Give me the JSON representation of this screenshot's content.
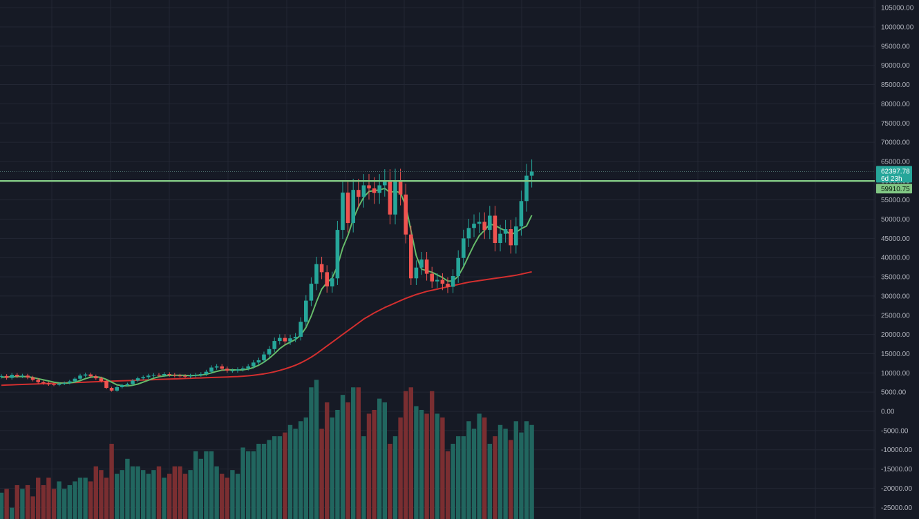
{
  "colors": {
    "background": "#161a25",
    "grid": "#232734",
    "up": "#26a69a",
    "down": "#ef5350",
    "vol_up": "#21665f",
    "vol_down": "#7a2e31",
    "ma_fast": "#66bb6a",
    "ma_slow": "#d32f2f",
    "level": "#81c784",
    "axis_text": "#b2b5be"
  },
  "chart_data": {
    "type": "candlestick",
    "ylim": [
      -28000,
      107000
    ],
    "y_ticks": [
      105000,
      100000,
      95000,
      90000,
      85000,
      80000,
      75000,
      70000,
      65000,
      60000,
      55000,
      50000,
      45000,
      40000,
      35000,
      30000,
      25000,
      20000,
      15000,
      10000,
      5000,
      0,
      -5000,
      -10000,
      -15000,
      -20000,
      -25000
    ],
    "y_tick_labels": [
      "105000.00",
      "100000.00",
      "95000.00",
      "90000.00",
      "85000.00",
      "80000.00",
      "75000.00",
      "70000.00",
      "65000.00",
      "60000.00",
      "55000.00",
      "50000.00",
      "45000.00",
      "40000.00",
      "35000.00",
      "30000.00",
      "25000.00",
      "20000.00",
      "15000.00",
      "10000.00",
      "5000.00",
      "0.00",
      "-5000.00",
      "-10000.00",
      "-15000.00",
      "-20000.00",
      "-25000.00"
    ],
    "closes": [
      9200,
      8700,
      9500,
      9100,
      9300,
      8800,
      8200,
      7600,
      7300,
      7000,
      6900,
      7200,
      7400,
      7800,
      8500,
      9300,
      9600,
      9100,
      8600,
      7900,
      6100,
      5400,
      6300,
      6800,
      7100,
      8000,
      8600,
      8900,
      9300,
      9500,
      9400,
      9700,
      9500,
      9300,
      9200,
      9100,
      9300,
      9500,
      9700,
      10300,
      11400,
      11700,
      11100,
      10600,
      10600,
      10900,
      11200,
      11700,
      12700,
      13300,
      14800,
      16200,
      18300,
      19100,
      18200,
      19000,
      19400,
      23300,
      28800,
      33200,
      38300,
      36200,
      32500,
      34600,
      47200,
      56900,
      49000,
      57600,
      55800,
      58800,
      58000,
      56800,
      58800,
      60000,
      51200,
      60100,
      56400,
      46000,
      34600,
      37400,
      39500,
      35800,
      33800,
      34200,
      33200,
      32400,
      35200,
      39900,
      45000,
      47700,
      48800,
      49300,
      47200,
      50900,
      43800,
      46200,
      47400,
      43200,
      48100,
      54700,
      61300,
      62397.78
    ],
    "opens": [
      9000,
      9200,
      8700,
      9500,
      9100,
      9300,
      8800,
      8200,
      7600,
      7300,
      7000,
      6900,
      7200,
      7400,
      7800,
      8500,
      9300,
      9600,
      9100,
      8600,
      7900,
      6100,
      5400,
      6300,
      6800,
      7100,
      8000,
      8600,
      8900,
      9300,
      9500,
      9400,
      9700,
      9500,
      9300,
      9200,
      9100,
      9300,
      9500,
      9700,
      10300,
      11400,
      11700,
      11100,
      10600,
      10600,
      10900,
      11200,
      11700,
      12700,
      13300,
      14800,
      16200,
      18300,
      19100,
      18200,
      19000,
      19400,
      23300,
      28800,
      33200,
      38300,
      36200,
      32500,
      34600,
      47200,
      56900,
      49000,
      57600,
      55800,
      58800,
      58000,
      56800,
      58800,
      60000,
      51200,
      60100,
      56400,
      46000,
      34600,
      37400,
      39500,
      35800,
      33800,
      34200,
      33200,
      32400,
      35200,
      39900,
      45000,
      47700,
      48800,
      49300,
      47200,
      50900,
      43800,
      46200,
      47400,
      43200,
      48100,
      54700,
      61300
    ],
    "volumes": [
      7,
      8,
      3,
      9,
      8,
      9,
      6,
      11,
      9,
      11,
      8,
      10,
      8,
      9,
      10,
      11,
      11,
      10,
      14,
      13,
      11,
      20,
      12,
      13,
      16,
      14,
      14,
      13,
      12,
      13,
      14,
      11,
      12,
      14,
      14,
      12,
      13,
      18,
      16,
      18,
      18,
      14,
      12,
      11,
      13,
      12,
      19,
      18,
      18,
      20,
      20,
      21,
      22,
      22,
      23,
      25,
      24,
      26,
      27,
      35,
      37,
      24,
      31,
      27,
      29,
      33,
      31,
      35,
      35,
      22,
      28,
      29,
      32,
      31,
      20,
      22,
      27,
      34,
      35,
      30,
      29,
      28,
      34,
      28,
      27,
      18,
      20,
      22,
      22,
      26,
      24,
      28,
      27,
      20,
      22,
      25,
      24,
      21,
      26,
      23,
      26,
      25
    ],
    "ma_fast": [
      8900,
      8950,
      9000,
      9050,
      9050,
      9000,
      8800,
      8500,
      8200,
      7900,
      7600,
      7400,
      7300,
      7400,
      7600,
      8000,
      8500,
      8900,
      9000,
      8800,
      8300,
      7600,
      6900,
      6700,
      6600,
      6800,
      7100,
      7600,
      8100,
      8600,
      9000,
      9200,
      9350,
      9400,
      9400,
      9350,
      9300,
      9350,
      9450,
      9650,
      10000,
      10400,
      10700,
      10800,
      10800,
      10750,
      10800,
      11000,
      11400,
      12000,
      12800,
      13800,
      15000,
      16300,
      17300,
      18000,
      18700,
      19800,
      21800,
      24800,
      28500,
      31800,
      33500,
      34700,
      37800,
      42500,
      45800,
      50000,
      53200,
      55700,
      57200,
      57400,
      57600,
      58000,
      56900,
      57300,
      56800,
      53500,
      47000,
      40500,
      37000,
      36600,
      36200,
      35500,
      34800,
      33900,
      33900,
      35200,
      37600,
      40500,
      43300,
      45700,
      47100,
      48700,
      48400,
      47600,
      47000,
      46000,
      46600,
      47500,
      48200,
      51000
    ],
    "ma_slow": [
      6800,
      6850,
      6900,
      6950,
      7000,
      7050,
      7100,
      7150,
      7200,
      7250,
      7300,
      7350,
      7400,
      7450,
      7500,
      7550,
      7600,
      7650,
      7700,
      7750,
      7800,
      7850,
      7900,
      7950,
      8000,
      8050,
      8100,
      8150,
      8200,
      8250,
      8300,
      8350,
      8400,
      8450,
      8500,
      8550,
      8600,
      8650,
      8700,
      8750,
      8800,
      8850,
      8900,
      8950,
      9000,
      9050,
      9150,
      9250,
      9400,
      9550,
      9750,
      10000,
      10300,
      10650,
      11050,
      11500,
      12000,
      12600,
      13300,
      14100,
      15000,
      16000,
      17000,
      18000,
      19000,
      20000,
      21000,
      22000,
      23000,
      24000,
      24800,
      25600,
      26300,
      27000,
      27600,
      28200,
      28800,
      29400,
      29900,
      30400,
      30800,
      31200,
      31500,
      31800,
      32100,
      32400,
      32700,
      33000,
      33300,
      33600,
      33800,
      34000,
      34200,
      34400,
      34600,
      34800,
      35000,
      35200,
      35400,
      35700,
      36000,
      36300
    ],
    "level": 59910.75,
    "last_price": 62397.78,
    "last_price_label": "62397.78",
    "countdown_label": "6d 23h",
    "level_label": "59910.75"
  }
}
